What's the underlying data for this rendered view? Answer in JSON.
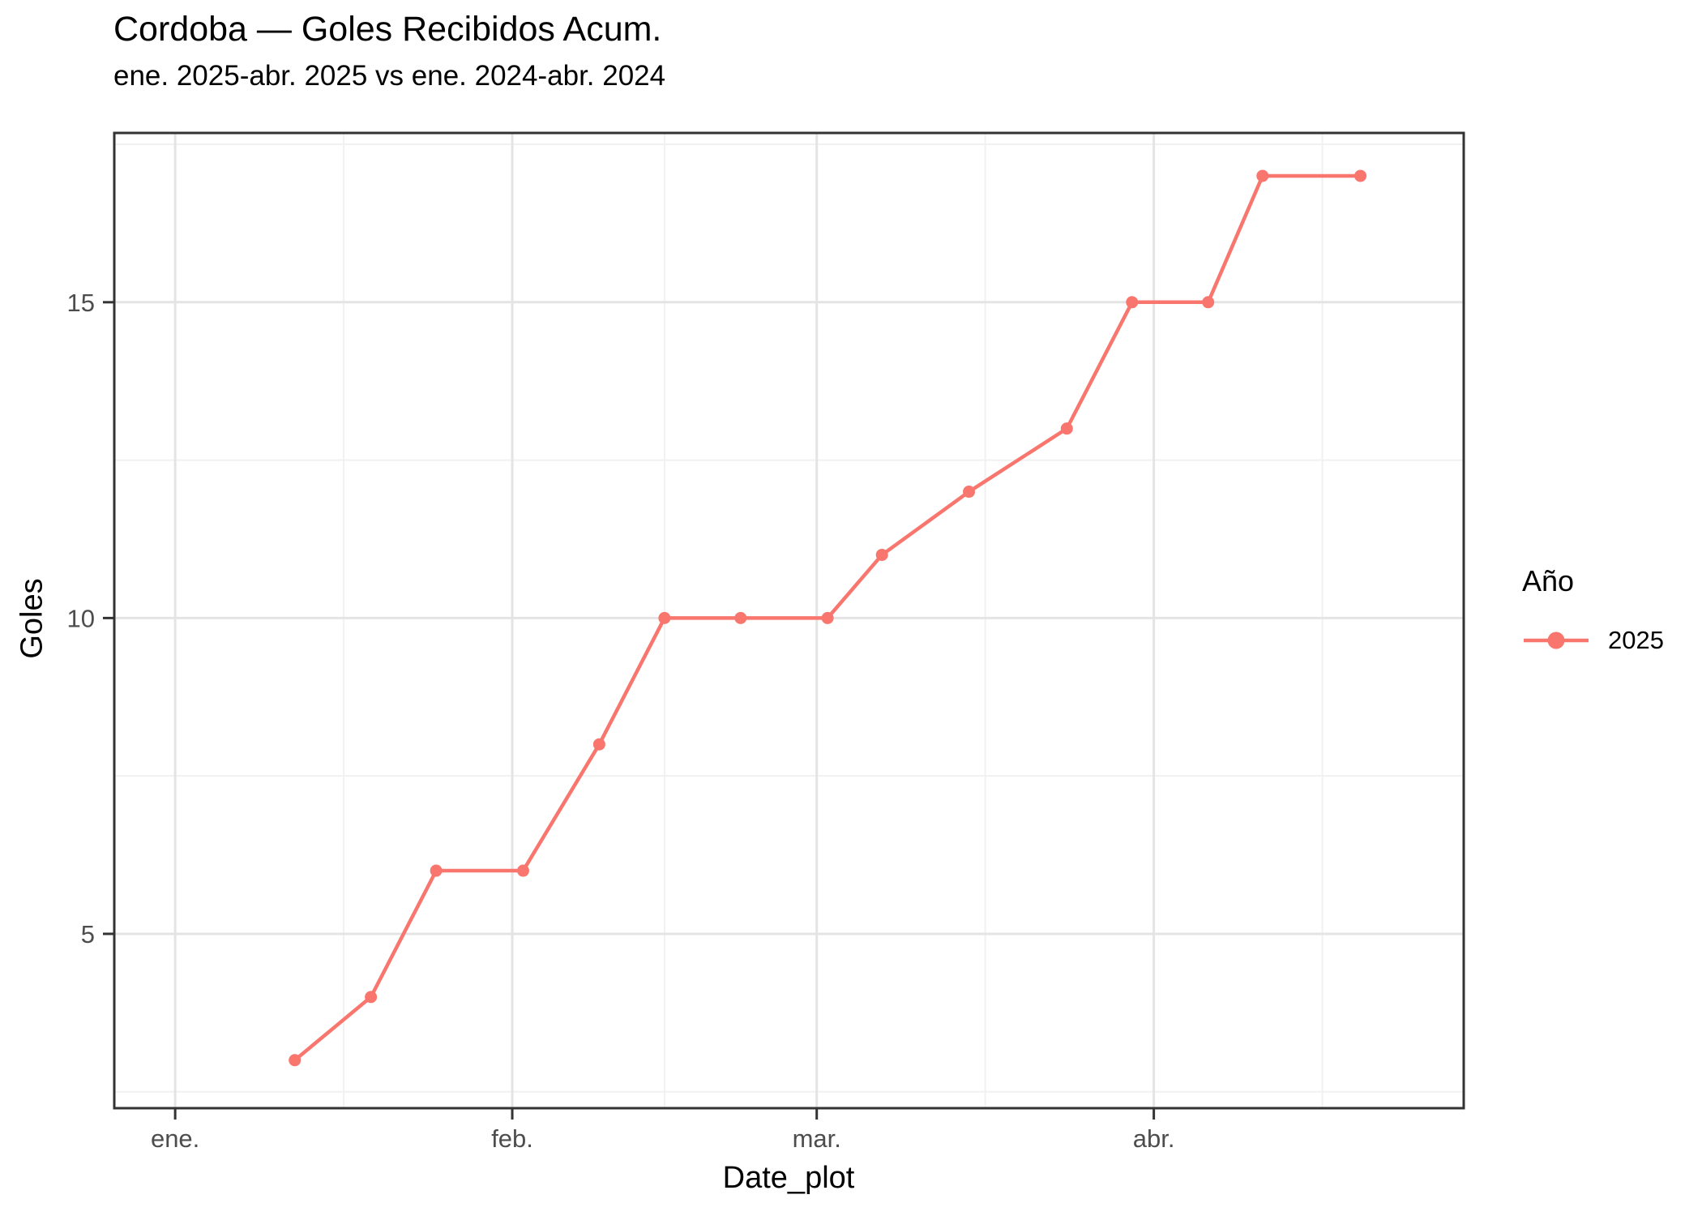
{
  "header": {
    "title": "Cordoba — Goles Recibidos Acum.",
    "subtitle": "ene. 2025-abr. 2025 vs ene. 2024-abr. 2024"
  },
  "chart_data": {
    "type": "line",
    "title": "Cordoba — Goles Recibidos Acum.",
    "subtitle": "ene. 2025-abr. 2025 vs ene. 2024-abr. 2024",
    "xlabel": "Date_plot",
    "ylabel": "Goles",
    "legend": {
      "title": "Año",
      "position": "right",
      "entries": [
        {
          "label": "2025",
          "color": "#F8766D"
        }
      ]
    },
    "series": [
      {
        "name": "2025",
        "color": "#F8766D",
        "points": [
          {
            "date": "2025-01-12",
            "day": 11,
            "goles": 3
          },
          {
            "date": "2025-01-19",
            "day": 18,
            "goles": 4
          },
          {
            "date": "2025-01-25",
            "day": 24,
            "goles": 6
          },
          {
            "date": "2025-02-02",
            "day": 32,
            "goles": 6
          },
          {
            "date": "2025-02-09",
            "day": 39,
            "goles": 8
          },
          {
            "date": "2025-02-15",
            "day": 45,
            "goles": 10
          },
          {
            "date": "2025-02-22",
            "day": 52,
            "goles": 10
          },
          {
            "date": "2025-03-02",
            "day": 60,
            "goles": 10
          },
          {
            "date": "2025-03-07",
            "day": 65,
            "goles": 11
          },
          {
            "date": "2025-03-14",
            "day": 73,
            "goles": 12
          },
          {
            "date": "2025-03-23",
            "day": 82,
            "goles": 13
          },
          {
            "date": "2025-03-29",
            "day": 88,
            "goles": 15
          },
          {
            "date": "2025-04-05",
            "day": 95,
            "goles": 15
          },
          {
            "date": "2025-04-10",
            "day": 100,
            "goles": 17
          },
          {
            "date": "2025-04-19",
            "day": 109,
            "goles": 17
          }
        ]
      }
    ],
    "x_ticks": [
      {
        "day": 0,
        "label": "ene."
      },
      {
        "day": 31,
        "label": "feb."
      },
      {
        "day": 59,
        "label": "mar."
      },
      {
        "day": 90,
        "label": "abr."
      }
    ],
    "x_minor_days": [
      15.5,
      45,
      74.5,
      105.5
    ],
    "y_ticks": [
      {
        "value": 5,
        "label": "5"
      },
      {
        "value": 10,
        "label": "10"
      },
      {
        "value": 15,
        "label": "15"
      }
    ],
    "y_minor": [
      2.5,
      7.5,
      12.5,
      17.5
    ],
    "x_domain": [
      -5.6,
      118.5
    ],
    "y_domain": [
      2.24,
      17.68
    ],
    "grid": true
  },
  "style": {
    "line_color": "#F8766D",
    "grid_major": "#E4E4E4",
    "grid_minor": "#F1F1F1",
    "border": "#333333",
    "tick_color": "#333333",
    "axis_text": "#4D4D4D"
  }
}
